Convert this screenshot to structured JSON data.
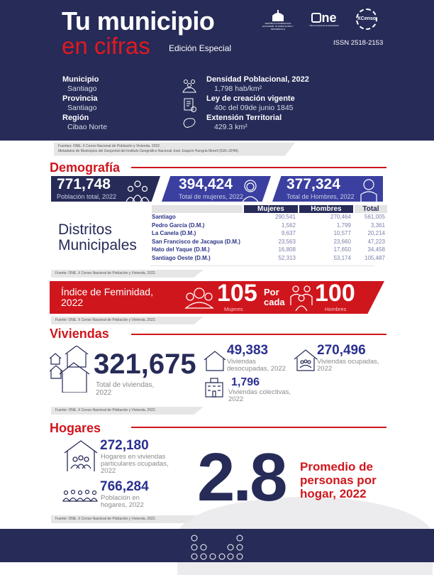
{
  "header": {
    "title_line1": "Tu municipio",
    "title_line2": "en cifras",
    "edition": "Edición Especial",
    "issn": "ISSN  2518-2153",
    "logos": [
      {
        "name": "ministerio",
        "text": "REPÚBLICA DOMINICANA · ECONOMÍA, PLANIFICACIÓN Y DESARROLLO"
      },
      {
        "name": "one",
        "text": "ne",
        "subtext": "Oficina Nacional de Estadística"
      },
      {
        "name": "xcenso",
        "text": "Censo"
      }
    ]
  },
  "info": {
    "left": [
      {
        "label": "Municipio",
        "value": "Santiago"
      },
      {
        "label": "Provincia",
        "value": "Santiago"
      },
      {
        "label": "Región",
        "value": "Cibao Norte"
      }
    ],
    "right": [
      {
        "label": "Densidad Poblacional, 2022",
        "value": "1,798 hab/km²",
        "icon": "people-group-icon"
      },
      {
        "label": "Ley de creación vigente",
        "value": "40c del 09de junio 1845",
        "icon": "document-check-icon"
      },
      {
        "label": "Extensión Territorial",
        "value": "429.3 km²",
        "icon": "map-outline-icon"
      }
    ]
  },
  "sources_header": [
    "Fuentes: ONE. X Censo Nacional de Población y Vivienda, 2022.",
    "Metadatos de Municipios del Geoportal del Instituto Geográfico Nacional José Joaquín Hungría Morell (IGN-JJHM)."
  ],
  "source": "Fuente: ONE. X Censo Nacional de Población y Vivienda, 2022.",
  "demografia": {
    "title": "Demografía",
    "stats": [
      {
        "value": "771,748",
        "label": "Población total, 2022"
      },
      {
        "value": "394,424",
        "label": "Total de mujeres, 2022"
      },
      {
        "value": "377,324",
        "label": "Total de Hombres, 2022"
      }
    ],
    "districts_title_1": "Distritos",
    "districts_title_2": "Municipales",
    "table": {
      "headers": [
        "Mujeres",
        "Hombres",
        "Total"
      ],
      "rows": [
        [
          "Santiago",
          "290,541",
          "270,464",
          "561,005"
        ],
        [
          "Pedro García (D.M.)",
          "1,562",
          "1,799",
          "3,361"
        ],
        [
          "La Canela (D.M.)",
          "9,637",
          "10,577",
          "20,214"
        ],
        [
          "San Francisco de Jacagua (D.M.)",
          "23,563",
          "23,660",
          "47,223"
        ],
        [
          "Hato del Yaque (D.M.)",
          "16,808",
          "17,650",
          "34,458"
        ],
        [
          "Santiago Oeste (D.M.)",
          "52,313",
          "53,174",
          "105,487"
        ]
      ]
    },
    "feminidad": {
      "title_1": "Índice de Feminidad,",
      "title_2": "2022",
      "women": "105",
      "women_label": "Mujeres",
      "por": "Por",
      "cada": "cada",
      "men": "100",
      "men_label": "Hombres"
    }
  },
  "viviendas": {
    "title": "Viviendas",
    "total": "321,675",
    "total_label_1": "Total de viviendas,",
    "total_label_2": "2022",
    "desocupadas": "49,383",
    "desocupadas_label_1": "Viviendas",
    "desocupadas_label_2": "desocupadas, 2022",
    "ocupadas": "270,496",
    "ocupadas_label_1": "Viviendas ocupadas,",
    "ocupadas_label_2": "2022",
    "colectivas": "1,796",
    "colectivas_label_1": "Viviendas colectivas,",
    "colectivas_label_2": "2022"
  },
  "hogares": {
    "title": "Hogares",
    "hogares": "272,180",
    "hogares_label_1": "Hogares en viviendas",
    "hogares_label_2": "particulares ocupadas,",
    "hogares_label_3": "2022",
    "poblacion": "766,284",
    "poblacion_label_1": "Población en",
    "poblacion_label_2": "hogares, 2022",
    "promedio": "2.8",
    "promedio_label_1": "Promedio de",
    "promedio_label_2": "personas por",
    "promedio_label_3": "hogar, 2022"
  },
  "colors": {
    "navy": "#262b57",
    "blue": "#3a3fa0",
    "red": "#d0161d"
  }
}
